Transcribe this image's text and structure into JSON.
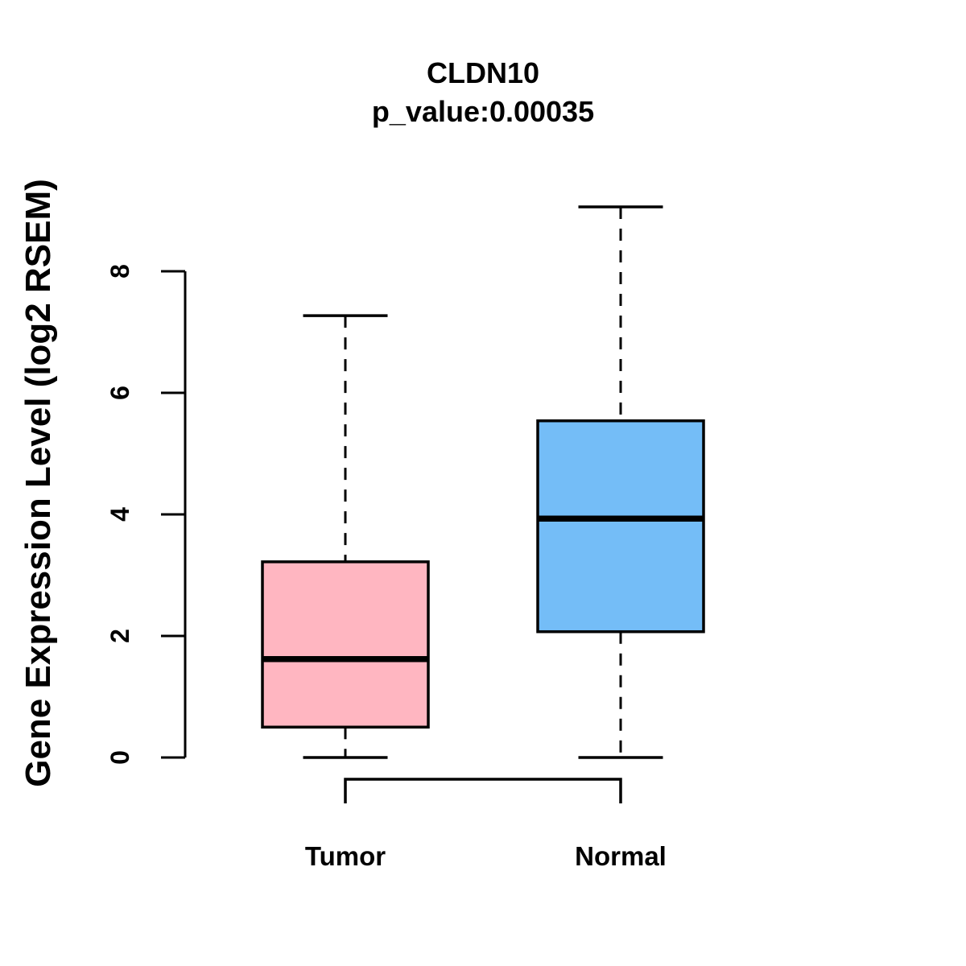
{
  "chart_data": {
    "type": "boxplot",
    "title": "CLDN10",
    "subtitle": "p_value:0.00035",
    "ylabel": "Gene Expression Level (log2 RSEM)",
    "yticks": [
      0,
      2,
      4,
      6,
      8
    ],
    "ylim": [
      -0.4,
      9.3
    ],
    "grid": false,
    "legend": false,
    "line_color": "#000000",
    "background_color": "#FFFFFF",
    "categories": [
      "Tumor",
      "Normal"
    ],
    "series": [
      {
        "name": "Tumor",
        "color": "#FFB6C1",
        "whisker_low": 0.0,
        "q1": 0.5,
        "median": 1.62,
        "q3": 3.22,
        "whisker_high": 7.27
      },
      {
        "name": "Normal",
        "color": "#74BDF7",
        "whisker_low": 0.0,
        "q1": 2.07,
        "median": 3.93,
        "q3": 5.54,
        "whisker_high": 9.06
      }
    ]
  }
}
